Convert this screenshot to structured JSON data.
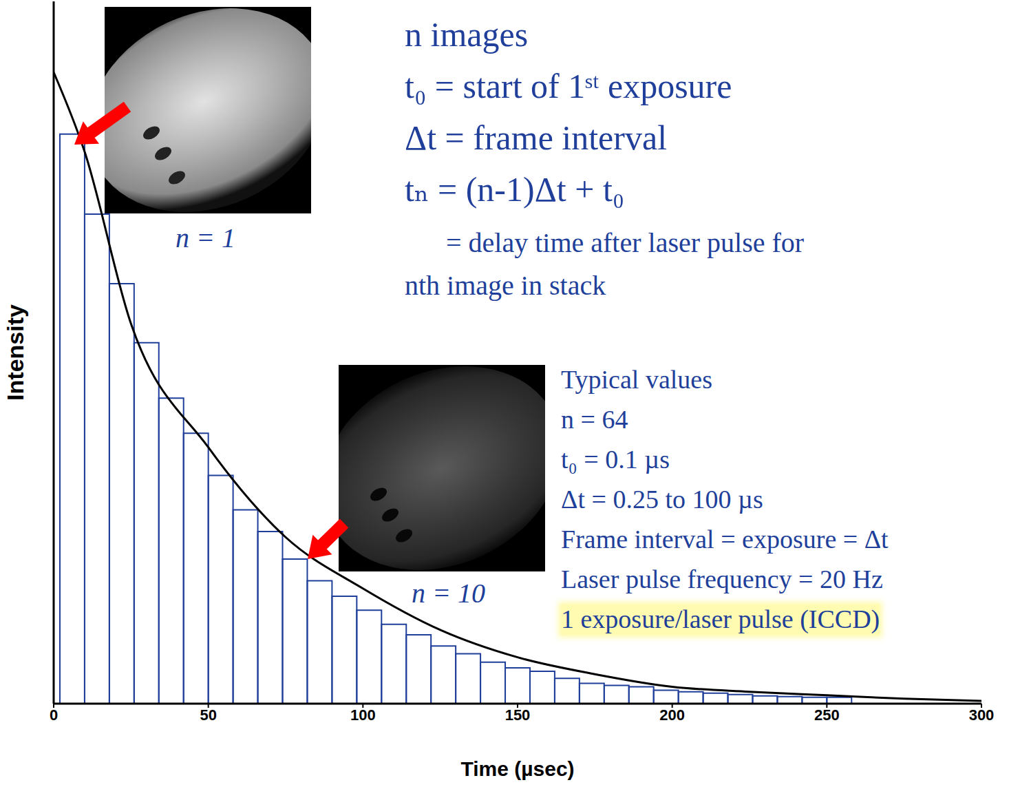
{
  "chart_data": {
    "type": "histogram",
    "xlabel": "Time (µsec)",
    "ylabel": "Intensity",
    "xlim": [
      0,
      300
    ],
    "xticks": [
      0,
      50,
      100,
      150,
      200,
      250,
      300
    ],
    "ylim": [
      0,
      100
    ],
    "tick_labels": "x",
    "color": "#203f9a",
    "bins": [
      2,
      10,
      18,
      26,
      34,
      42,
      50,
      58,
      66,
      74,
      82,
      90,
      98,
      106,
      114,
      122,
      130,
      138,
      146,
      154,
      162,
      170,
      178,
      186,
      194,
      202,
      210,
      218,
      226,
      234,
      242,
      250,
      258
    ],
    "counts": [
      81.1,
      69.7,
      59.8,
      51.4,
      43.5,
      38.5,
      32.5,
      27.6,
      24.5,
      20.6,
      17.5,
      15.3,
      13.3,
      11.3,
      9.8,
      8.2,
      7.1,
      5.9,
      5.1,
      4.6,
      3.6,
      2.9,
      2.6,
      2.4,
      1.9,
      1.7,
      1.5,
      1.3,
      1.1,
      1.0,
      0.9,
      0.9
    ],
    "curve": {
      "type": "line",
      "color": "#000000",
      "x": [
        0,
        10,
        25,
        50,
        75,
        100,
        125,
        150,
        175,
        200,
        225,
        250,
        275,
        300
      ],
      "values": [
        89.9,
        78.6,
        54.1,
        36.5,
        23.7,
        16.4,
        10.5,
        6.6,
        4.2,
        2.4,
        1.7,
        1.2,
        0.7,
        0.4
      ]
    },
    "annotations": {
      "definitions": [
        "n images",
        "t₀ = start of 1ˢᵗ exposure",
        "Δt = frame interval",
        "tₙ = (n-1)Δt + t₀",
        "= delay time after laser pulse for",
        "nth image in stack"
      ],
      "typical_values": [
        "Typical values",
        "n = 64",
        "t₀ = 0.1 µs",
        "Δt = 0.25 to 100 µs",
        "Frame interval = exposure = Δt",
        "Laser pulse frequency = 20 Hz",
        "1 exposure/laser pulse (ICCD)"
      ],
      "image_labels": [
        "n = 1",
        "n = 10"
      ]
    }
  }
}
